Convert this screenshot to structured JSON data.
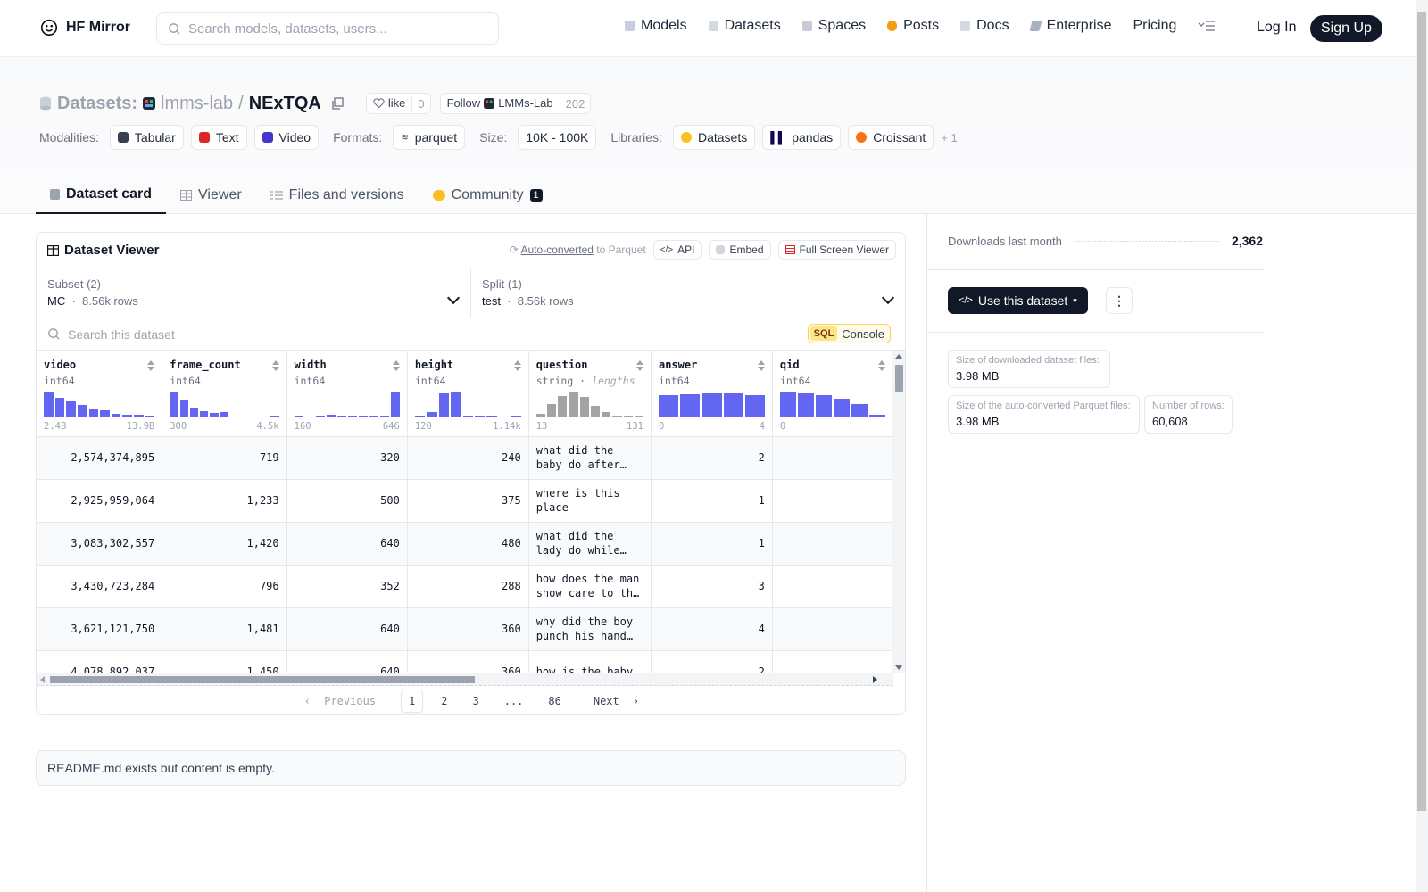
{
  "nav": {
    "brand": "HF Mirror",
    "search_placeholder": "Search models, datasets, users...",
    "links": [
      "Models",
      "Datasets",
      "Spaces",
      "Posts",
      "Docs",
      "Enterprise",
      "Pricing"
    ],
    "login": "Log In",
    "signup": "Sign Up"
  },
  "header": {
    "kind": "Datasets:",
    "owner": "lmms-lab",
    "separator": "/",
    "name": "NExTQA",
    "like_label": "like",
    "like_count": "0",
    "follow_label": "Follow",
    "follow_org": "LMMs-Lab",
    "follow_count": "202",
    "modalities_label": "Modalities:",
    "modalities": [
      "Tabular",
      "Text",
      "Video"
    ],
    "formats_label": "Formats:",
    "formats": [
      "parquet"
    ],
    "size_label": "Size:",
    "size": "10K - 100K",
    "libraries_label": "Libraries:",
    "libraries": [
      "Datasets",
      "pandas",
      "Croissant"
    ],
    "libraries_more": "+ 1"
  },
  "tabs": {
    "card": "Dataset card",
    "viewer": "Viewer",
    "files": "Files and versions",
    "community": "Community",
    "community_count": "1"
  },
  "viewer": {
    "title": "Dataset Viewer",
    "auto_link": "Auto-converted",
    "auto_suffix": "to Parquet",
    "api": "API",
    "embed": "Embed",
    "fullscreen": "Full Screen Viewer",
    "subset_label": "Subset (2)",
    "subset_value": "MC",
    "subset_rows": "8.56k rows",
    "split_label": "Split (1)",
    "split_value": "test",
    "split_rows": "8.56k rows",
    "search_placeholder": "Search this dataset",
    "sql": "SQL",
    "console": "Console",
    "columns": [
      {
        "name": "video",
        "type": "int64",
        "min": "2.4B",
        "max": "13.9B"
      },
      {
        "name": "frame_count",
        "type": "int64",
        "min": "300",
        "max": "4.5k"
      },
      {
        "name": "width",
        "type": "int64",
        "min": "160",
        "max": "646"
      },
      {
        "name": "height",
        "type": "int64",
        "min": "120",
        "max": "1.14k"
      },
      {
        "name": "question",
        "type": "string",
        "type_extra": "lengths",
        "min": "13",
        "max": "131"
      },
      {
        "name": "answer",
        "type": "int64",
        "min": "0",
        "max": "4"
      },
      {
        "name": "qid",
        "type": "int64",
        "min": "0",
        "max": ""
      }
    ],
    "rows": [
      [
        "2,574,374,895",
        "719",
        "320",
        "240",
        "what did the baby do after throwing the green cup away while on the floor",
        "2",
        ""
      ],
      [
        "2,925,959,064",
        "1,233",
        "500",
        "375",
        "where is this place",
        "1",
        ""
      ],
      [
        "3,083,302,557",
        "1,420",
        "640",
        "480",
        "what did the lady do while turning around",
        "1",
        ""
      ],
      [
        "3,430,723,284",
        "796",
        "352",
        "288",
        "how does the man show care to the baby",
        "3",
        ""
      ],
      [
        "3,621,121,750",
        "1,481",
        "640",
        "360",
        "why did the boy punch his hand forward",
        "4",
        ""
      ],
      [
        "4,078,892,037",
        "1,450",
        "640",
        "360",
        "how is the baby",
        "2",
        ""
      ]
    ],
    "pager": {
      "prev": "Previous",
      "pages": [
        "1",
        "2",
        "3",
        "...",
        "86"
      ],
      "next": "Next"
    }
  },
  "readme_text": "README.md exists but content is empty.",
  "sidebar": {
    "downloads_label": "Downloads last month",
    "downloads_value": "2,362",
    "use_button": "Use this dataset",
    "stats": [
      {
        "label": "Size of downloaded dataset files:",
        "value": "3.98 MB"
      },
      {
        "label": "Size of the auto-converted Parquet files:",
        "value": "3.98 MB"
      },
      {
        "label": "Number of rows:",
        "value": "60,608"
      }
    ]
  },
  "histograms": {
    "video": [
      1.0,
      0.78,
      0.68,
      0.5,
      0.35,
      0.28,
      0.16,
      0.12,
      0.1,
      0.06
    ],
    "frame_count": [
      1.0,
      0.72,
      0.38,
      0.25,
      0.18,
      0.22,
      0,
      0,
      0,
      0,
      0.03
    ],
    "width": [
      0.03,
      0,
      0.05,
      0.1,
      0.06,
      0.05,
      0.08,
      0.05,
      0.04,
      1.0
    ],
    "height": [
      0.03,
      0.22,
      0.95,
      1.0,
      0.05,
      0.03,
      0.03,
      0,
      0.08
    ],
    "question": [
      0.15,
      0.55,
      0.85,
      1.0,
      0.82,
      0.45,
      0.22,
      0.08,
      0.04,
      0.02
    ],
    "answer": [
      0.9,
      0.92,
      0.98,
      0.95,
      0.9
    ],
    "qid": [
      1.0,
      0.95,
      0.9,
      0.75,
      0.55,
      0.1
    ]
  },
  "colors": {
    "bar": "#6366f1",
    "bar_gray": "#a3a3a3",
    "dark": "#111827"
  }
}
